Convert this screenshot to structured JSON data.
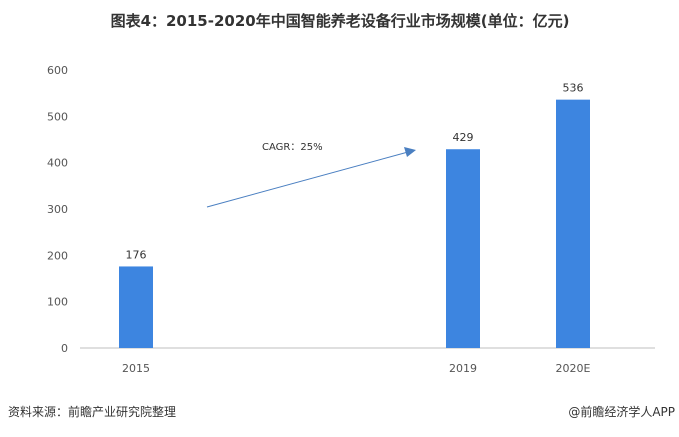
{
  "chart_data": {
    "type": "bar",
    "title": "图表4：2015-2020年中国智能养老设备行业市场规模(单位：亿元)",
    "categories": [
      "2015",
      "2019",
      "2020E"
    ],
    "values": [
      176,
      429,
      536
    ],
    "ylim": [
      0,
      600
    ],
    "yticks": [
      "0",
      "100",
      "200",
      "300",
      "400",
      "500",
      "600"
    ],
    "grid": false,
    "bar_color": "#3d85e0",
    "annotation": "CAGR：25%",
    "data_labels": [
      "176",
      "429",
      "536"
    ]
  },
  "footer": {
    "source": "资料来源：前瞻产业研究院整理",
    "credit": "@前瞻经济学人APP"
  }
}
